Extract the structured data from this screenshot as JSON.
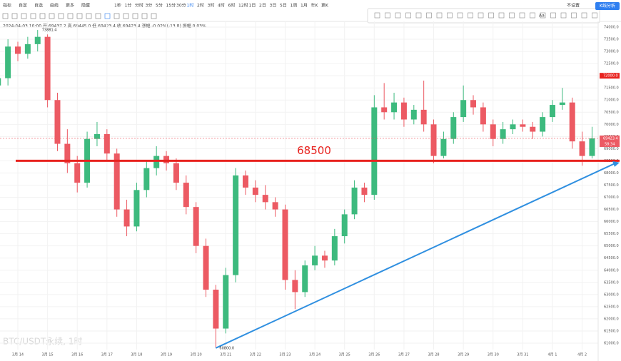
{
  "toolbar": {
    "items": [
      "指标",
      "自定",
      "自选",
      "画线",
      "更多",
      "隐藏"
    ],
    "intervals": [
      "1秒",
      "1分",
      "分时",
      "3分",
      "5分",
      "15分",
      "30分",
      "1时",
      "2时",
      "3时",
      "4时",
      "6时",
      "12时",
      "1日",
      "2日",
      "3日",
      "5日",
      "1周",
      "1月",
      "年K",
      "更K"
    ],
    "info": "2024-04-03 10:00  开 69437.2  高 69445.0  低 69423.4  收 69423.4  涨幅 -0.02%(-13.8)  振幅 0.03%",
    "right_label": "不设置",
    "draw_text": "Aa",
    "button": "K线分析"
  },
  "chart_data": {
    "type": "candlestick",
    "title": "BTC/USDT永续, 1时",
    "categories": [
      null,
      null,
      "3月 14",
      null,
      null,
      "3月 15",
      null,
      null,
      "3月 16",
      null,
      null,
      "3月 17",
      null,
      null,
      "3月 18",
      null,
      null,
      "3月 19",
      null,
      null,
      "3月 20",
      null,
      null,
      "3月 21",
      null,
      null,
      "3月 22",
      null,
      null,
      "3月 23",
      null,
      null,
      "3月 24",
      null,
      null,
      "3月 25",
      null,
      null,
      "3月 26",
      null,
      null,
      "3月 27",
      null,
      null,
      "3月 28",
      null,
      null,
      "3月 29",
      null,
      null,
      "3月 30",
      null,
      null,
      "3月 31",
      null,
      null,
      "4月 1",
      null,
      null,
      "4月 2",
      null
    ],
    "opens": [
      71600,
      71900,
      73200,
      72900,
      73300,
      73600,
      71000,
      69200,
      68400,
      67600,
      69400,
      69600,
      68800,
      66500,
      65800,
      67300,
      68200,
      68700,
      68400,
      67600,
      66600,
      65000,
      63200,
      61600,
      63800,
      67900,
      67400,
      67100,
      66800,
      66500,
      63600,
      63100,
      64200,
      64600,
      64400,
      65400,
      66300,
      67400,
      67100,
      70700,
      70500,
      70900,
      70200,
      70600,
      70000,
      68700,
      69400,
      70300,
      71000,
      70700,
      70000,
      69400,
      69800,
      70000,
      69900,
      69700,
      70300,
      70800,
      70900,
      69300,
      68700
    ],
    "highs": [
      72300,
      73500,
      73400,
      73600,
      73881.4,
      73700,
      71300,
      69800,
      68700,
      69700,
      70100,
      69800,
      69000,
      66900,
      67600,
      68500,
      69100,
      68900,
      68600,
      67900,
      66800,
      65300,
      63400,
      64100,
      68200,
      68100,
      67700,
      67500,
      67000,
      66700,
      64000,
      64400,
      65000,
      64800,
      65700,
      66500,
      67700,
      67600,
      71200,
      71700,
      71300,
      71100,
      70800,
      71800,
      70200,
      69700,
      70500,
      71600,
      71200,
      70900,
      70200,
      70100,
      70200,
      70200,
      70100,
      70500,
      71000,
      71500,
      71100,
      69700,
      69900
    ],
    "lows": [
      71300,
      71600,
      72600,
      72700,
      73000,
      70700,
      68900,
      68000,
      67200,
      67400,
      69100,
      68500,
      66200,
      65400,
      65600,
      67000,
      67900,
      68100,
      67300,
      66300,
      64700,
      62900,
      60800,
      61400,
      63500,
      67100,
      66800,
      66500,
      66200,
      63200,
      62400,
      62900,
      64000,
      64100,
      64200,
      65100,
      66100,
      66800,
      66900,
      70200,
      70200,
      69900,
      70000,
      69700,
      68400,
      68600,
      69200,
      70100,
      70400,
      69700,
      69100,
      69200,
      69600,
      69700,
      69400,
      69500,
      70100,
      70600,
      69000,
      68300,
      68600
    ],
    "closes": [
      71900,
      73200,
      72900,
      73300,
      73600,
      71000,
      69200,
      68400,
      67600,
      69400,
      69600,
      68800,
      66500,
      65800,
      67300,
      68200,
      68700,
      68400,
      67600,
      66600,
      65000,
      63200,
      61600,
      63800,
      67900,
      67400,
      67100,
      66800,
      66500,
      63600,
      63100,
      64200,
      64600,
      64400,
      65400,
      66300,
      67400,
      67100,
      70700,
      70500,
      70900,
      70200,
      70600,
      70000,
      68700,
      69400,
      70300,
      71000,
      70700,
      70000,
      69400,
      69800,
      70000,
      69900,
      69700,
      70300,
      70800,
      70900,
      69300,
      68700,
      69423.4
    ],
    "up_color": "#3dba7e",
    "down_color": "#ec5a63",
    "ylim": [
      60750,
      74250
    ],
    "yticks": [
      {
        "value": 61000,
        "label": "61000.0"
      },
      {
        "value": 61500,
        "label": "61500.0"
      },
      {
        "value": 62000,
        "label": "62000.0"
      },
      {
        "value": 62500,
        "label": "62500.0"
      },
      {
        "value": 63000,
        "label": "63000.0"
      },
      {
        "value": 63500,
        "label": "63500.0"
      },
      {
        "value": 64000,
        "label": "64000.0"
      },
      {
        "value": 64500,
        "label": "64500.0"
      },
      {
        "value": 65000,
        "label": "65000.0"
      },
      {
        "value": 65500,
        "label": "65500.0"
      },
      {
        "value": 66000,
        "label": "66000.0"
      },
      {
        "value": 66500,
        "label": "66500.0"
      },
      {
        "value": 67000,
        "label": "67000.0"
      },
      {
        "value": 67500,
        "label": "67500.0"
      },
      {
        "value": 68000,
        "label": "68000.0"
      },
      {
        "value": 68500,
        "label": "68500.0"
      },
      {
        "value": 69000,
        "label": "69000.0"
      },
      {
        "value": 69500,
        "label": "69500.0"
      },
      {
        "value": 70000,
        "label": "70000.0"
      },
      {
        "value": 70500,
        "label": "70500.0"
      },
      {
        "value": 71000,
        "label": "71000.0"
      },
      {
        "value": 71500,
        "label": "71500.0"
      },
      {
        "value": 72000,
        "label": "72000.0"
      },
      {
        "value": 72500,
        "label": "72500.0"
      },
      {
        "value": 73000,
        "label": "73000.0"
      },
      {
        "value": 73500,
        "label": "73500.0"
      },
      {
        "value": 74000,
        "label": "74000.0"
      }
    ],
    "grid": true,
    "high_label": 73881.4,
    "low_label": {
      "value": 60800,
      "label": "60800.0"
    },
    "hline": {
      "value": 68500,
      "color": "#e8231f"
    },
    "trendline": {
      "start": 60800,
      "end": 68400,
      "color": "#2f8fe0"
    },
    "alert_tag": {
      "value": 72000,
      "label": "72000.0",
      "color": "#e8231f"
    },
    "last_price": {
      "value": 69423.4,
      "countdown": "58:34",
      "color": "#ec5a63"
    }
  }
}
